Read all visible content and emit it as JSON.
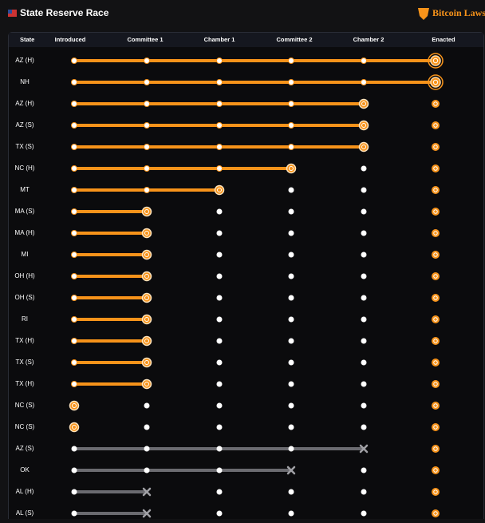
{
  "header": {
    "title": "State Reserve Race",
    "brand": "Bitcoin Laws"
  },
  "table": {
    "columns": [
      "State",
      "Introduced",
      "Committee 1",
      "Chamber 1",
      "Committee 2",
      "Chamber 2",
      "Enacted"
    ],
    "rows": [
      {
        "state": "AZ (H)",
        "stage": 5
      },
      {
        "state": "NH",
        "stage": 5
      },
      {
        "state": "AZ (H)",
        "stage": 4
      },
      {
        "state": "AZ (S)",
        "stage": 4
      },
      {
        "state": "TX (S)",
        "stage": 4
      },
      {
        "state": "NC (H)",
        "stage": 3
      },
      {
        "state": "MT",
        "stage": 2
      },
      {
        "state": "MA (S)",
        "stage": 1
      },
      {
        "state": "MA (H)",
        "stage": 1
      },
      {
        "state": "MI",
        "stage": 1
      },
      {
        "state": "OH (H)",
        "stage": 1
      },
      {
        "state": "OH (S)",
        "stage": 1
      },
      {
        "state": "RI",
        "stage": 1
      },
      {
        "state": "TX (H)",
        "stage": 1
      },
      {
        "state": "TX (S)",
        "stage": 1
      },
      {
        "state": "TX (H)",
        "stage": 1
      },
      {
        "state": "NC (S)",
        "stage": 0
      },
      {
        "state": "NC (S)",
        "stage": 0
      },
      {
        "state": "AZ (S)",
        "stage": 4,
        "failed": true
      },
      {
        "state": "OK",
        "stage": 3,
        "failed": true
      },
      {
        "state": "AL (H)",
        "stage": 1,
        "failed": true
      },
      {
        "state": "AL (S)",
        "stage": 1,
        "failed": true
      }
    ]
  }
}
